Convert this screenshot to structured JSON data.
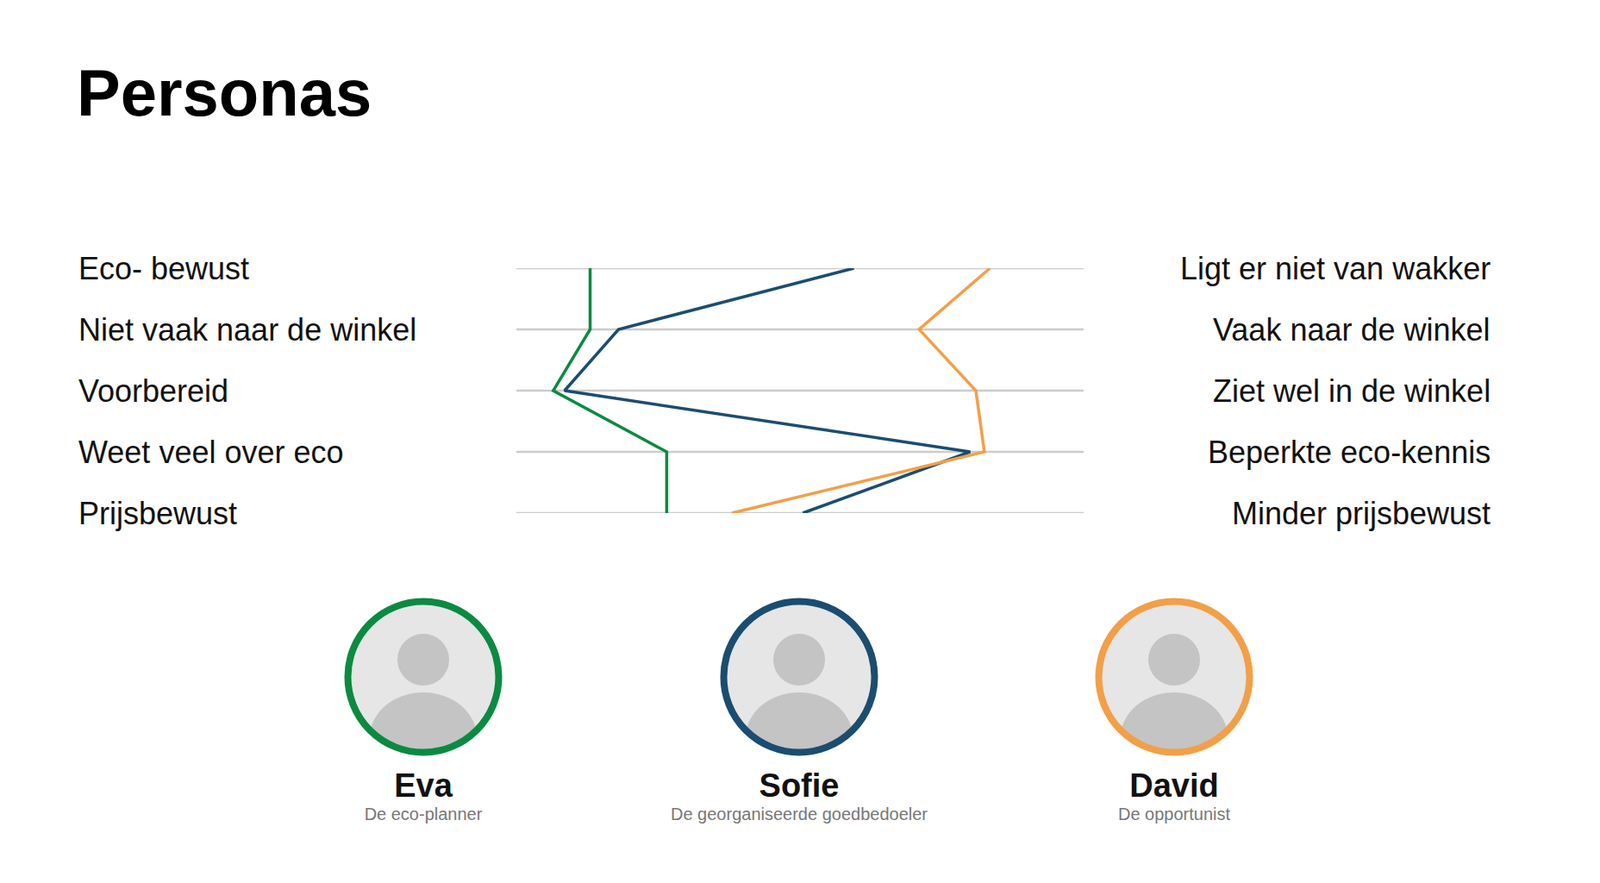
{
  "chart_data": {
    "type": "line",
    "title": "Personas",
    "categories": [
      "Eco- bewust",
      "Niet vaak naar de winkel",
      "Voorbereid",
      "Weet veel over eco",
      "Prijsbewust"
    ],
    "opposite_labels": [
      "Ligt er niet van wakker",
      "Vaak naar de winkel",
      "Ziet wel in de winkel",
      "Beperkte eco-kennis",
      "Minder prijsbewust"
    ],
    "orientation": "horizontal",
    "xlim": [
      0,
      100
    ],
    "grid": true,
    "tick_labels": false,
    "series": [
      {
        "name": "Eva",
        "subtitle": "De eco-planner",
        "color": "#0b8a41",
        "values": [
          13,
          13,
          6.5,
          26.5,
          26.5
        ]
      },
      {
        "name": "Sofie",
        "subtitle": "De georganiseerde goedbedoeler",
        "color": "#1b4d70",
        "values": [
          59.5,
          18,
          8.5,
          80,
          50.5
        ]
      },
      {
        "name": "David",
        "subtitle": "De opportunist",
        "color": "#f39f48",
        "values": [
          83.5,
          71,
          81,
          82.5,
          38
        ]
      }
    ]
  }
}
